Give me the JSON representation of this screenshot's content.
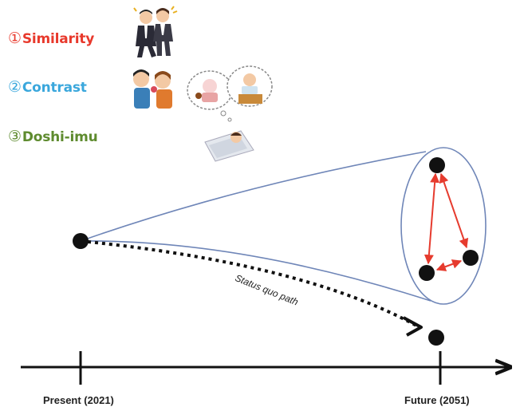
{
  "legend": {
    "items": [
      {
        "num": "①",
        "label": "Similarity",
        "color": "#e8392c"
      },
      {
        "num": "②",
        "label": "Contrast",
        "color": "#3aa7dc"
      },
      {
        "num": "③",
        "label": "Doshi-imu",
        "color": "#5e8b2e"
      }
    ]
  },
  "timeline": {
    "start_label": "Present (2021)",
    "end_label": "Future (2051)",
    "path_label": "Status quo path"
  },
  "colors": {
    "cone_line": "#6f86b8",
    "triangle_arrows": "#e63b2e",
    "nodes": "#111111"
  },
  "icons": {
    "people_group": "business-people-icon",
    "couple": "couple-icon",
    "thought_bubbles": "thought-bubble-icon",
    "sleeping_person": "sleeping-person-icon"
  }
}
